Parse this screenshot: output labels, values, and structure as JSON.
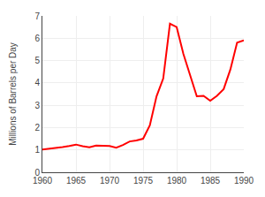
{
  "chart_data": {
    "type": "line",
    "ylabel": "Millions of Barrels per Day",
    "x": [
      1960,
      1961,
      1962,
      1963,
      1964,
      1965,
      1966,
      1967,
      1968,
      1969,
      1970,
      1971,
      1972,
      1973,
      1974,
      1975,
      1976,
      1977,
      1978,
      1979,
      1980,
      1981,
      1982,
      1983,
      1984,
      1985,
      1986,
      1987,
      1988,
      1989,
      1990
    ],
    "values": [
      1.02,
      1.05,
      1.1,
      1.13,
      1.18,
      1.24,
      1.17,
      1.12,
      1.2,
      1.18,
      1.18,
      1.1,
      1.22,
      1.38,
      1.42,
      1.5,
      2.1,
      3.4,
      4.2,
      6.65,
      6.5,
      5.3,
      4.3,
      3.4,
      3.42,
      3.2,
      3.42,
      3.72,
      4.6,
      5.8,
      5.9
    ],
    "color": "#ff0000",
    "xlim": [
      1960,
      1990
    ],
    "ylim": [
      0,
      7
    ],
    "xticks": [
      1960,
      1965,
      1970,
      1975,
      1980,
      1985,
      1990
    ],
    "yticks": [
      0,
      1,
      2,
      3,
      4,
      5,
      6,
      7
    ],
    "grid": true
  }
}
